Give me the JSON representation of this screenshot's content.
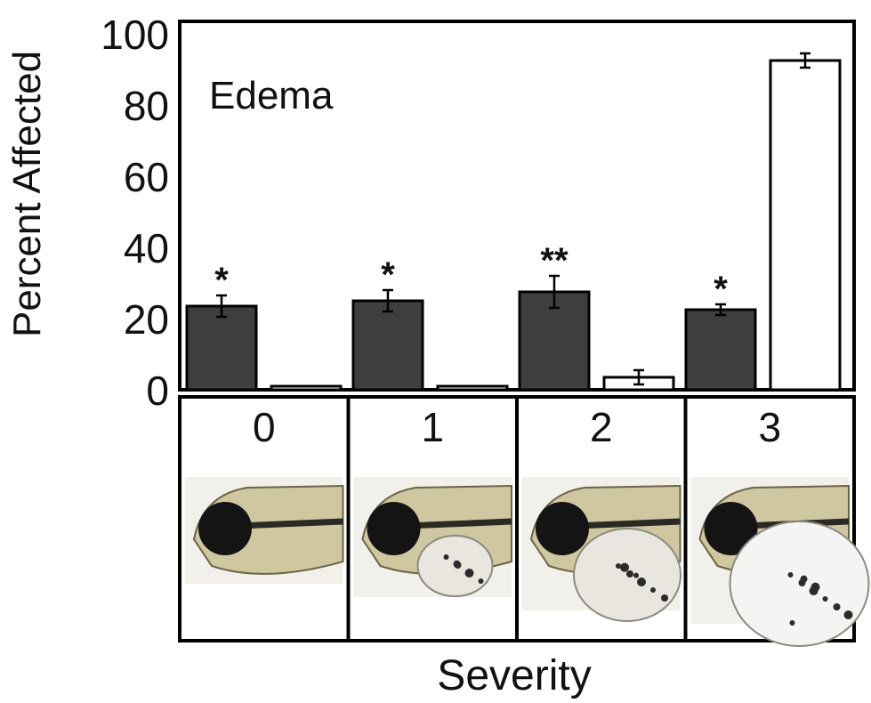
{
  "chart_data": {
    "type": "bar",
    "annotation": "Edema",
    "ylabel": "Percent Affected",
    "xlabel": "Severity",
    "ylim": [
      0,
      100
    ],
    "yticks": [
      "0",
      "20",
      "40",
      "60",
      "80",
      "100"
    ],
    "categories": [
      "0",
      "1",
      "2",
      "3"
    ],
    "series": [
      {
        "fill": "#3e3e3e",
        "values": [
          23.5,
          25,
          27.5,
          22.5
        ],
        "errors": [
          3,
          3,
          4.5,
          1.5
        ],
        "significance": [
          "*",
          "*",
          "**",
          "*"
        ]
      },
      {
        "fill": "#ffffff",
        "values": [
          1,
          1,
          3.5,
          92.5
        ],
        "errors": [
          0,
          0,
          2,
          2
        ],
        "significance": [
          "",
          "",
          "",
          ""
        ]
      }
    ],
    "grid": false,
    "legend": "none"
  },
  "panels": [
    {
      "label": "0",
      "icon": "larva-severity-0-image"
    },
    {
      "label": "1",
      "icon": "larva-severity-1-image"
    },
    {
      "label": "2",
      "icon": "larva-severity-2-image"
    },
    {
      "label": "3",
      "icon": "larva-severity-3-image"
    }
  ]
}
